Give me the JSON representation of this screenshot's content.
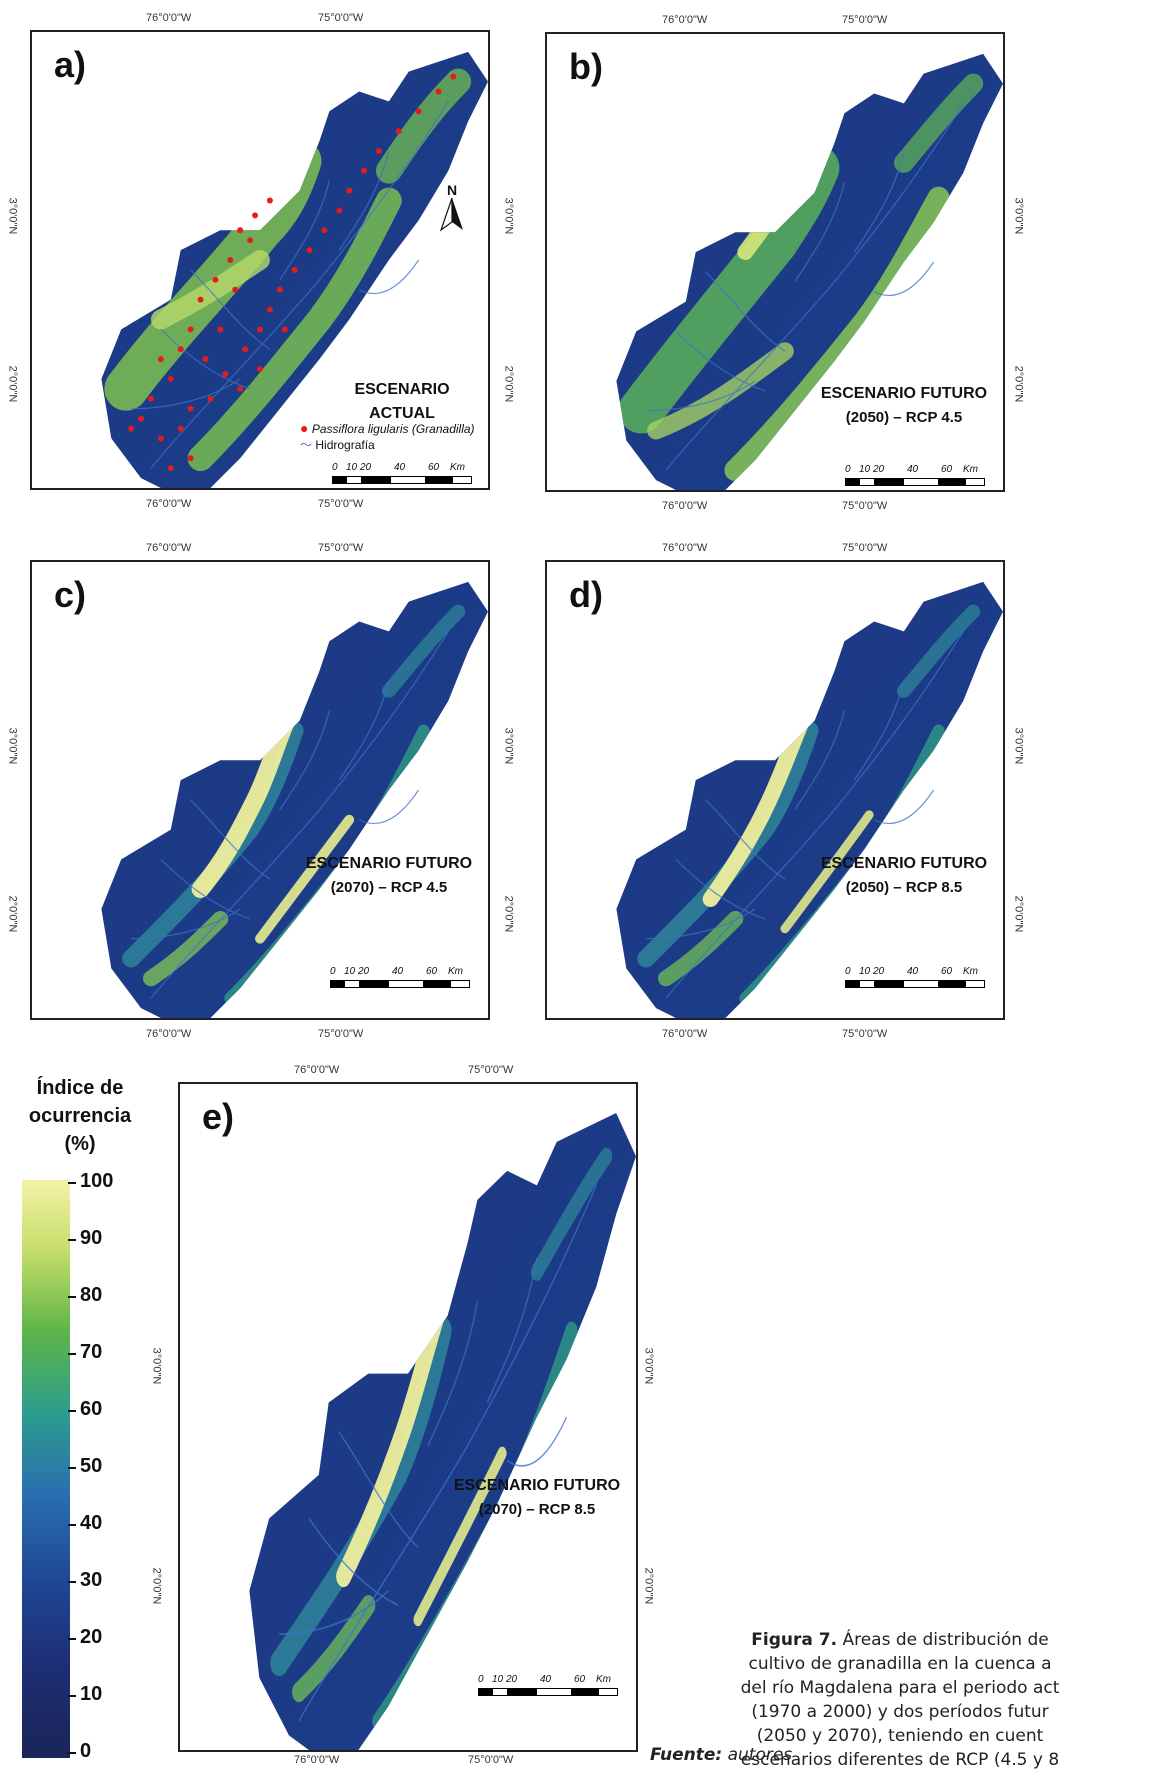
{
  "coord_labels": {
    "lon_76": "76°0'0\"W",
    "lon_75": "75°0'0\"W",
    "lat_3": "3°0'0\"N",
    "lat_2": "2°0'0\"N"
  },
  "north_label": "N",
  "scale_labels": [
    "0",
    "10",
    "20",
    "40",
    "60",
    "Km"
  ],
  "panels": [
    {
      "letter": "a)",
      "title_line1": "ESCENARIO ACTUAL",
      "title_line2": ""
    },
    {
      "letter": "b)",
      "title_line1": "ESCENARIO FUTURO",
      "title_line2": "(2050) – RCP 4.5"
    },
    {
      "letter": "c)",
      "title_line1": "ESCENARIO FUTURO",
      "title_line2": "(2070) – RCP 4.5"
    },
    {
      "letter": "d)",
      "title_line1": "ESCENARIO FUTURO",
      "title_line2": "(2050) – RCP 8.5"
    },
    {
      "letter": "e)",
      "title_line1": "ESCENARIO FUTURO",
      "title_line2": "(2070) – RCP 8.5"
    }
  ],
  "map_legend": {
    "points_label": "Passiflora ligularis (Granadilla)",
    "hydro_label": "Hidrografía"
  },
  "colorbar": {
    "title_line1": "Índice de",
    "title_line2": "ocurrencia",
    "title_line3": "(%)",
    "ticks": [
      "100",
      "90",
      "80",
      "70",
      "60",
      "50",
      "40",
      "30",
      "20",
      "10",
      "0"
    ],
    "top_color": "#f4f2a8",
    "bottom_color": "#1a2558"
  },
  "caption": {
    "label": "Figura 7.",
    "line1": " Áreas de distribución de",
    "line2": "cultivo de granadilla en la cuenca a",
    "line3": "del río Magdalena para el periodo act",
    "line4": "(1970 a 2000) y dos períodos futur",
    "line5": "(2050 y 2070), teniendo en cuent",
    "line6": "escenarios diferentes de RCP (4.5 y 8"
  },
  "source": {
    "label": "Fuente:",
    "value": " autores"
  }
}
